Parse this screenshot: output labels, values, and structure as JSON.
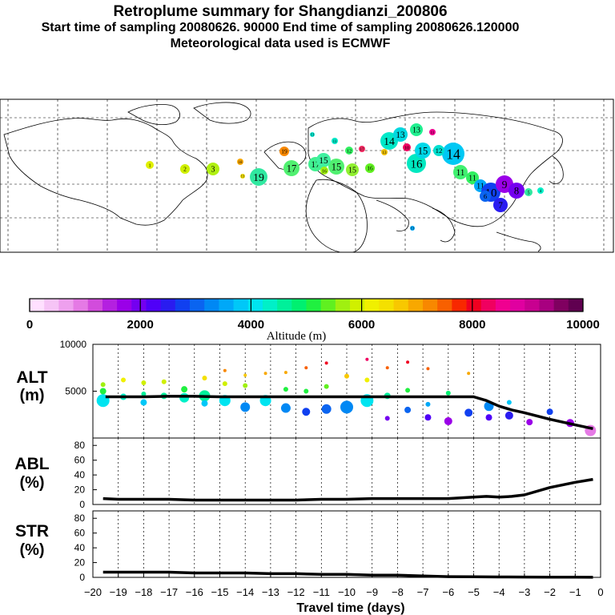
{
  "header": {
    "title": "Retroplume summary for Shangdianzi_200806",
    "sampling": "Start time of sampling 20080626. 90000     End time of sampling 20080626.120000",
    "met": "Meteorological data used is ECMWF"
  },
  "colorbar": {
    "ticks": [
      "0",
      "2000",
      "4000",
      "6000",
      "8000",
      "10000"
    ],
    "label": "Altitude (m)",
    "colors": [
      "#ffe0ff",
      "#f6c4f6",
      "#eea0ee",
      "#e57ae5",
      "#d24cdc",
      "#b420e0",
      "#9a00e8",
      "#7400f0",
      "#5000f8",
      "#2a1cf0",
      "#1040f0",
      "#0a64f0",
      "#0088f4",
      "#00a8f8",
      "#00c8f8",
      "#00e4f0",
      "#00f0c8",
      "#00f09a",
      "#00f070",
      "#20f040",
      "#60f020",
      "#a0f010",
      "#d0f000",
      "#f0f000",
      "#f4e000",
      "#f8c800",
      "#f8a800",
      "#f88800",
      "#f86000",
      "#f82800",
      "#f00020",
      "#f00060",
      "#f00090",
      "#e000a0",
      "#c80090",
      "#a80080",
      "#800060",
      "#600050"
    ]
  },
  "panels": {
    "alt_label_1": "ALT",
    "alt_label_2": "(m)",
    "abl_label_1": "ABL",
    "abl_label_2": "(%)",
    "str_label_1": "STR",
    "str_label_2": "(%)",
    "alt_yticks": [
      "10000",
      "5000",
      "0"
    ],
    "pct_yticks": [
      "80",
      "60",
      "40",
      "20",
      "0"
    ],
    "xlabel": "Travel time (days)",
    "xticks": [
      "−20",
      "−19",
      "−18",
      "−17",
      "−16",
      "−15",
      "−14",
      "−13",
      "−12",
      "−11",
      "−10",
      "−9",
      "−8",
      "−7",
      "−6",
      "−5",
      "−4",
      "−3",
      "−2",
      "−1",
      "0"
    ]
  },
  "map": {
    "labels": [
      "19",
      "17",
      "17",
      "15",
      "15",
      "15",
      "16",
      "15",
      "14",
      "14",
      "13",
      "13",
      "12",
      "11",
      "11",
      "11",
      "10",
      "9",
      "8",
      "7",
      "6",
      "5",
      "4",
      "3",
      "2",
      "1",
      "19",
      "18",
      "16",
      "16",
      "13",
      "17",
      "10",
      "12",
      "11",
      "11",
      "11",
      "11",
      "11"
    ]
  },
  "chart_data": [
    {
      "type": "line",
      "title": "ALT",
      "ylabel": "(m)",
      "xlabel": "Travel time (days)",
      "xlim": [
        -20,
        0
      ],
      "ylim": [
        0,
        10000
      ],
      "series": [
        {
          "name": "mean altitude",
          "x": [
            -19.5,
            -19,
            -18,
            -17,
            -16,
            -15,
            -14,
            -13,
            -12,
            -11,
            -10,
            -9,
            -8,
            -7,
            -6,
            -5,
            -4.5,
            -4,
            -3.5,
            -3,
            -2,
            -1,
            -0.3
          ],
          "values": [
            4400,
            4400,
            4400,
            4450,
            4450,
            4400,
            4400,
            4400,
            4400,
            4400,
            4400,
            4400,
            4400,
            4400,
            4400,
            4400,
            4000,
            3400,
            3000,
            2700,
            2000,
            1400,
            1000
          ]
        },
        {
          "name": "altitude clusters",
          "type": "scatter",
          "x": [
            -19.6,
            -19.6,
            -19.6,
            -18.8,
            -18.8,
            -18,
            -18,
            -18,
            -17.2,
            -17.2,
            -16.4,
            -16.4,
            -15.6,
            -15.6,
            -15.6,
            -14.8,
            -14.8,
            -14.8,
            -14,
            -14,
            -14,
            -13.2,
            -13.2,
            -12.4,
            -12.4,
            -12.4,
            -11.6,
            -11.6,
            -11.6,
            -10.8,
            -10.8,
            -10.8,
            -10,
            -10,
            -9.2,
            -9.2,
            -9.2,
            -8.4,
            -8.4,
            -8.4,
            -7.6,
            -7.6,
            -7.6,
            -6.8,
            -6.8,
            -6.8,
            -6,
            -6,
            -5.2,
            -5.2,
            -4.4,
            -4.4,
            -3.6,
            -3.6,
            -2.8,
            -2,
            -1.2,
            -0.4
          ],
          "values": [
            4000,
            5000,
            5700,
            4400,
            6200,
            3800,
            4700,
            5900,
            4500,
            6000,
            4300,
            5200,
            4500,
            6400,
            3700,
            4000,
            7200,
            5800,
            3300,
            6700,
            5600,
            4000,
            6900,
            3200,
            5200,
            7000,
            2800,
            5000,
            7500,
            3100,
            5500,
            8000,
            3300,
            6600,
            4000,
            6200,
            8400,
            4500,
            2100,
            7500,
            3000,
            5100,
            8100,
            2200,
            3600,
            7400,
            1800,
            4800,
            2700,
            6900,
            3400,
            2200,
            2400,
            3800,
            1700,
            2800,
            1600,
            800
          ],
          "sizes": [
            8,
            4,
            3,
            4,
            3,
            4,
            3,
            3,
            4,
            3,
            6,
            4,
            7,
            3,
            4,
            7,
            2,
            3,
            6,
            2,
            3,
            7,
            2,
            6,
            3,
            2,
            5,
            3,
            2,
            6,
            3,
            2,
            8,
            3,
            8,
            3,
            2,
            4,
            3,
            2,
            4,
            3,
            2,
            4,
            3,
            2,
            5,
            3,
            5,
            2,
            6,
            4,
            5,
            3,
            4,
            4,
            5,
            7
          ]
        }
      ]
    },
    {
      "type": "line",
      "title": "ABL",
      "ylabel": "(%)",
      "xlim": [
        -20,
        0
      ],
      "ylim": [
        0,
        90
      ],
      "series": [
        {
          "name": "ABL fraction",
          "x": [
            -19.6,
            -19,
            -18,
            -17,
            -16,
            -15,
            -14,
            -13,
            -12,
            -11,
            -10,
            -9,
            -8,
            -7,
            -6,
            -5,
            -4.5,
            -4,
            -3.5,
            -3,
            -2,
            -1,
            -0.3
          ],
          "values": [
            8,
            7,
            7,
            7,
            6,
            6,
            6,
            6,
            6,
            7,
            7,
            8,
            8,
            8,
            8,
            10,
            11,
            10,
            11,
            13,
            23,
            30,
            34
          ]
        }
      ]
    },
    {
      "type": "line",
      "title": "STR",
      "ylabel": "(%)",
      "xlim": [
        -20,
        0
      ],
      "ylim": [
        0,
        90
      ],
      "series": [
        {
          "name": "STR fraction",
          "x": [
            -19.6,
            -19,
            -18,
            -17,
            -16,
            -15,
            -14,
            -13,
            -12,
            -11,
            -10,
            -9,
            -8,
            -7,
            -6,
            -5,
            -4,
            -3,
            -2,
            -1,
            -0.3
          ],
          "values": [
            7,
            7,
            7,
            7,
            6,
            6,
            6,
            5,
            5,
            4,
            4,
            3,
            3,
            2,
            1,
            0.8,
            0.5,
            0.4,
            0.3,
            0.2,
            0.1
          ]
        }
      ]
    }
  ]
}
